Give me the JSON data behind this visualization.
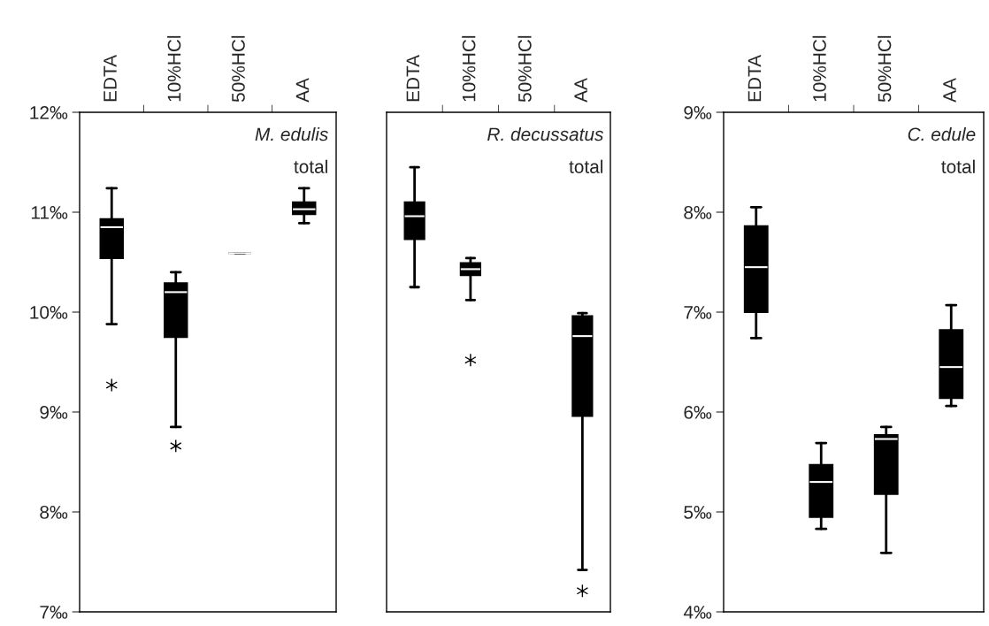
{
  "chart_data": [
    {
      "type": "box",
      "categories": [
        "EDTA",
        "10%HCl",
        "50%HCl",
        "AA"
      ],
      "ylim": [
        7,
        12
      ],
      "yticks": [
        {
          "value": 7,
          "label": "7‰"
        },
        {
          "value": 8,
          "label": "8‰"
        },
        {
          "value": 9,
          "label": "9‰"
        },
        {
          "value": 10,
          "label": "10‰"
        },
        {
          "value": 11,
          "label": "11‰"
        },
        {
          "value": 12,
          "label": "12‰"
        }
      ],
      "color": "#000000",
      "annotations": [
        "M. edulis",
        "total"
      ],
      "boxes": [
        {
          "low": 9.88,
          "q1": 10.54,
          "median": 10.85,
          "q3": 10.93,
          "high": 11.24,
          "outliers": [
            9.27
          ]
        },
        {
          "low": 8.85,
          "q1": 9.75,
          "median": 10.2,
          "q3": 10.29,
          "high": 10.4,
          "outliers": [
            8.66
          ]
        },
        {
          "low": 10.59,
          "q1": 10.59,
          "median": 10.59,
          "q3": 10.59,
          "high": 10.59
        },
        {
          "low": 10.89,
          "q1": 10.98,
          "median": 11.03,
          "q3": 11.1,
          "high": 11.24
        }
      ]
    },
    {
      "type": "box",
      "categories": [
        "EDTA",
        "10%HCl",
        "50%HCl",
        "AA"
      ],
      "ylim": [
        7,
        12
      ],
      "tick_labels": "x",
      "color": "#000000",
      "annotations": [
        "R. decussatus",
        "total"
      ],
      "boxes": [
        {
          "low": 10.25,
          "q1": 10.73,
          "median": 10.96,
          "q3": 11.1,
          "high": 11.45
        },
        {
          "low": 10.12,
          "q1": 10.37,
          "median": 10.43,
          "q3": 10.49,
          "high": 10.54,
          "outliers": [
            9.52
          ]
        },
        null,
        {
          "low": 7.42,
          "q1": 8.96,
          "median": 9.76,
          "q3": 9.96,
          "high": 9.99,
          "outliers": [
            7.21
          ]
        }
      ]
    },
    {
      "type": "box",
      "categories": [
        "EDTA",
        "10%HCl",
        "50%HCl",
        "AA"
      ],
      "ylim": [
        4,
        9
      ],
      "yticks": [
        {
          "value": 4,
          "label": "4‰"
        },
        {
          "value": 5,
          "label": "5‰"
        },
        {
          "value": 6,
          "label": "6‰"
        },
        {
          "value": 7,
          "label": "7‰"
        },
        {
          "value": 8,
          "label": "8‰"
        },
        {
          "value": 9,
          "label": "9‰"
        }
      ],
      "color": "#000000",
      "annotations": [
        "C. edule",
        "total"
      ],
      "boxes": [
        {
          "low": 6.74,
          "q1": 7.0,
          "median": 7.45,
          "q3": 7.86,
          "high": 8.05
        },
        {
          "low": 4.83,
          "q1": 4.95,
          "median": 5.3,
          "q3": 5.47,
          "high": 5.69
        },
        {
          "low": 4.59,
          "q1": 5.18,
          "median": 5.73,
          "q3": 5.77,
          "high": 5.85
        },
        {
          "low": 6.06,
          "q1": 6.14,
          "median": 6.45,
          "q3": 6.82,
          "high": 7.07
        }
      ]
    }
  ]
}
